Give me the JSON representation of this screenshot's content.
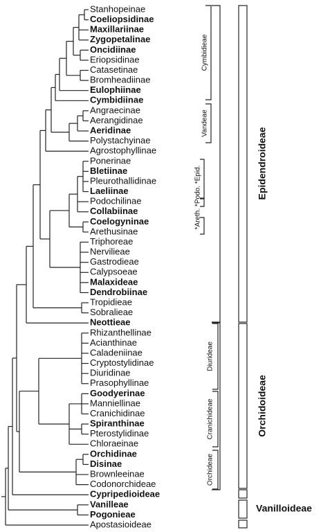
{
  "leaves": [
    {
      "label": "Stanhopeinae",
      "bold": false
    },
    {
      "label": "Coeliopsidinae",
      "bold": true
    },
    {
      "label": "Maxillariinae",
      "bold": true
    },
    {
      "label": "Zygopetalinae",
      "bold": true
    },
    {
      "label": "Oncidiinae",
      "bold": true
    },
    {
      "label": "Eriopsidinae",
      "bold": false
    },
    {
      "label": "Catasetinae",
      "bold": false
    },
    {
      "label": "Bromheadiinae",
      "bold": false
    },
    {
      "label": "Eulophiinae",
      "bold": true
    },
    {
      "label": "Cymbidiinae",
      "bold": true
    },
    {
      "label": "Angraecinae",
      "bold": false
    },
    {
      "label": "Aerangidinae",
      "bold": false
    },
    {
      "label": "Aeridinae",
      "bold": true
    },
    {
      "label": "Polystachyinae",
      "bold": false
    },
    {
      "label": "Agrostophyllinae",
      "bold": false
    },
    {
      "label": "Ponerinae",
      "bold": false
    },
    {
      "label": "Bletiinae",
      "bold": true
    },
    {
      "label": "Pleurothallidinae",
      "bold": false
    },
    {
      "label": "Laeliinae",
      "bold": true
    },
    {
      "label": "Podochilinae",
      "bold": false
    },
    {
      "label": "Collabiinae",
      "bold": true
    },
    {
      "label": "Coelogyninae",
      "bold": true
    },
    {
      "label": "Arethusinae",
      "bold": false
    },
    {
      "label": "Triphoreae",
      "bold": false
    },
    {
      "label": "Nervilieae",
      "bold": false
    },
    {
      "label": "Gastrodieae",
      "bold": false
    },
    {
      "label": "Calypsoeae",
      "bold": false
    },
    {
      "label": "Malaxideae",
      "bold": true
    },
    {
      "label": "Dendrobiinae",
      "bold": true
    },
    {
      "label": "Tropidieae",
      "bold": false
    },
    {
      "label": "Sobralieae",
      "bold": false
    },
    {
      "label": "Neottieae",
      "bold": true
    },
    {
      "label": "Rhizanthellinae",
      "bold": false
    },
    {
      "label": "Acianthinae",
      "bold": false
    },
    {
      "label": "Caladeniinae",
      "bold": false
    },
    {
      "label": "Cryptostylidinae",
      "bold": false
    },
    {
      "label": "Diuridinae",
      "bold": false
    },
    {
      "label": "Prasophyllinae",
      "bold": false
    },
    {
      "label": "Goodyerinae",
      "bold": true
    },
    {
      "label": "Manniellinae",
      "bold": false
    },
    {
      "label": "Cranichidinae",
      "bold": false
    },
    {
      "label": "Spiranthinae",
      "bold": true
    },
    {
      "label": "Pterostylidinae",
      "bold": false
    },
    {
      "label": "Chloraeinae",
      "bold": false
    },
    {
      "label": "Orchidinae",
      "bold": true
    },
    {
      "label": "Disinae",
      "bold": true
    },
    {
      "label": "Brownleeinae",
      "bold": false
    },
    {
      "label": "Codonorchideae",
      "bold": false
    },
    {
      "label": "Cypripedioideae",
      "bold": true
    },
    {
      "label": "Vanilleae",
      "bold": true
    },
    {
      "label": "Pogonieae",
      "bold": true
    },
    {
      "label": "Apostasioideae",
      "bold": false
    }
  ],
  "tribes": [
    "Cymbidieae",
    "Vandeae",
    "*Areth. *Podo. *Epid.",
    "Diurideae",
    "Cranichideae",
    "Orchideae"
  ],
  "subfamilies": [
    "Epidendroideae",
    "Orchidoideae",
    "Vanilloideae"
  ]
}
